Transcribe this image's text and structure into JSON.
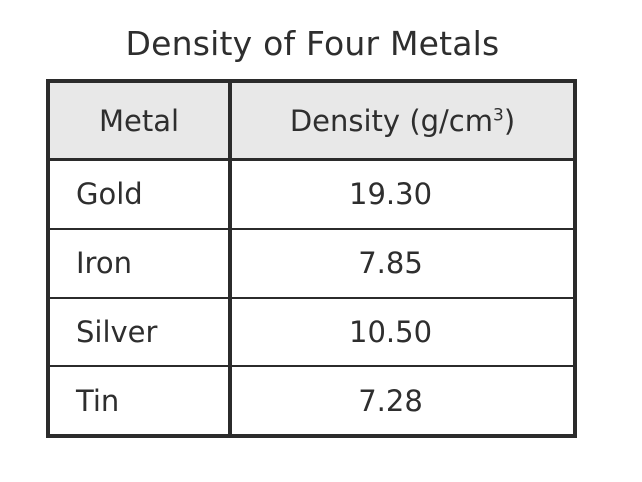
{
  "title": "Density of Four Metals",
  "table": {
    "headers": {
      "metal": "Metal",
      "density_prefix": "Density (g/cm",
      "density_exponent": "3",
      "density_suffix": ")"
    },
    "rows": [
      {
        "metal": "Gold",
        "density": "19.30"
      },
      {
        "metal": "Iron",
        "density": " 7.85"
      },
      {
        "metal": "Silver",
        "density": "10.50"
      },
      {
        "metal": "Tin",
        "density": " 7.28"
      }
    ]
  }
}
